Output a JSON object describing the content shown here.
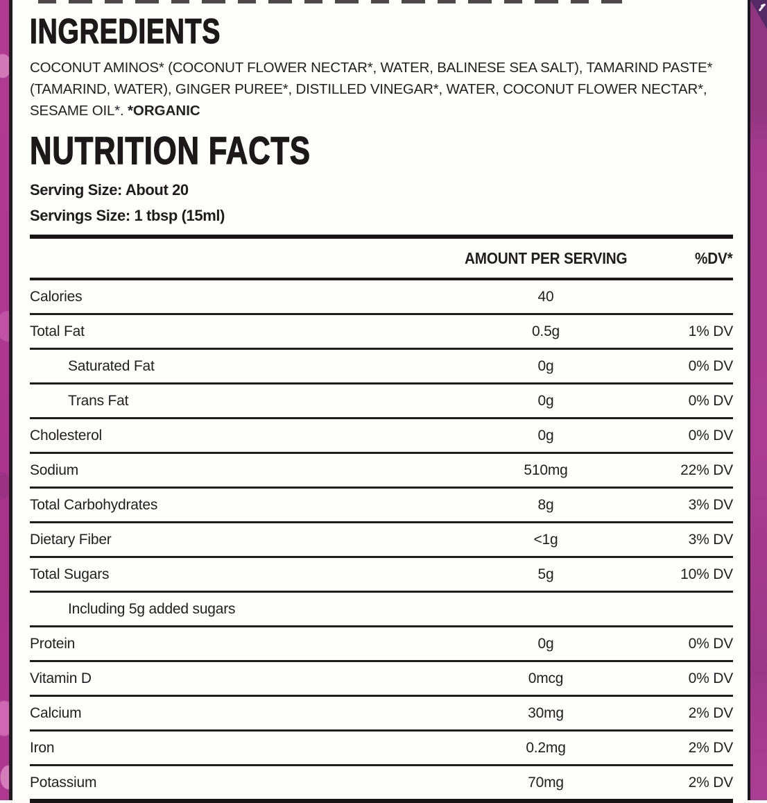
{
  "label": {
    "ingredients_title": "INGREDIENTS",
    "ingredients_text": "COCONUT AMINOS* (COCONUT FLOWER NECTAR*, WATER, BALINESE SEA SALT), TAMARIND PASTE* (TAMARIND, WATER), GINGER PUREE*, DISTILLED VINEGAR*, WATER, COCONUT FLOWER NECTAR*, SESAME OIL*. ",
    "organic_note": "*ORGANIC",
    "nutrition_title": "NUTRITION FACTS",
    "serving_line1": "Serving Size: About 20",
    "serving_line2": "Servings Size: 1 tbsp (15ml)"
  },
  "table": {
    "headers": {
      "amount": "AMOUNT PER SERVING",
      "dv": "%DV*"
    },
    "rows": [
      {
        "label": "Calories",
        "amount": "40",
        "dv": "",
        "indent": false
      },
      {
        "label": "Total Fat",
        "amount": "0.5g",
        "dv": "1% DV",
        "indent": false
      },
      {
        "label": "Saturated Fat",
        "amount": "0g",
        "dv": "0% DV",
        "indent": true
      },
      {
        "label": "Trans Fat",
        "amount": "0g",
        "dv": "0% DV",
        "indent": true
      },
      {
        "label": "Cholesterol",
        "amount": "0g",
        "dv": "0% DV",
        "indent": false
      },
      {
        "label": "Sodium",
        "amount": "510mg",
        "dv": "22% DV",
        "indent": false
      },
      {
        "label": "Total Carbohydrates",
        "amount": "8g",
        "dv": "3% DV",
        "indent": false
      },
      {
        "label": "Dietary Fiber",
        "amount": "<1g",
        "dv": "3% DV",
        "indent": false
      },
      {
        "label": "Total Sugars",
        "amount": "5g",
        "dv": "10% DV",
        "indent": false
      },
      {
        "label": "Including 5g added sugars",
        "amount": "",
        "dv": "",
        "indent": true
      },
      {
        "label": "Protein",
        "amount": "0g",
        "dv": "0% DV",
        "indent": false
      },
      {
        "label": "Vitamin D",
        "amount": "0mcg",
        "dv": "0% DV",
        "indent": false
      },
      {
        "label": "Calcium",
        "amount": "30mg",
        "dv": "2% DV",
        "indent": false
      },
      {
        "label": "Iron",
        "amount": "0.2mg",
        "dv": "2% DV",
        "indent": false
      },
      {
        "label": "Potassium",
        "amount": "70mg",
        "dv": "2% DV",
        "indent": false
      }
    ]
  },
  "colors": {
    "panel_bg": "#fefefc",
    "text": "#221e1f",
    "left_strip_magenta": "#ad3791",
    "left_strip_splotch": "#d36cb5",
    "right_strip_magenta": "#aa3d93",
    "corner_badge_purple": "#532a66",
    "rule_black": "#191415"
  }
}
